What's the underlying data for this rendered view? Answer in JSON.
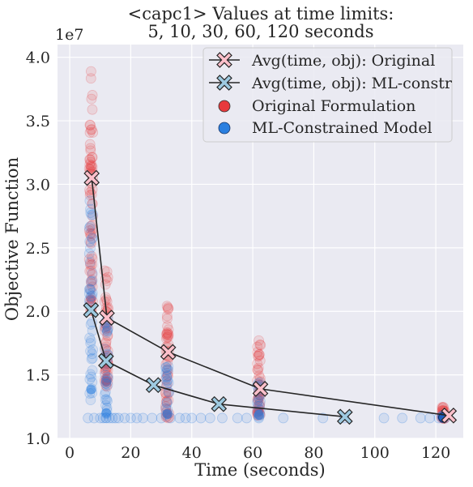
{
  "chart_data": {
    "type": "scatter",
    "title_line1": "<capc1> Values at time limits:",
    "title_line2": "5, 10, 30, 60, 120 seconds",
    "xlabel": "Time (seconds)",
    "ylabel": "Objective Function",
    "y_scale_label": "1e7",
    "xlim": [
      -4,
      129
    ],
    "ylim": [
      1.0,
      4.1
    ],
    "x_ticks": [
      0,
      20,
      40,
      60,
      80,
      100,
      120
    ],
    "y_ticks": [
      1.0,
      1.5,
      2.0,
      2.5,
      3.0,
      3.5,
      4.0
    ],
    "y_tick_labels": [
      "1.0",
      "1.5",
      "2.0",
      "2.5",
      "3.0",
      "3.5",
      "4.0"
    ],
    "grid": true,
    "legend_position": "top-right",
    "colors": {
      "background": "#eaeaf2",
      "original_points": "#e8393c",
      "ml_points": "#2a7fe0",
      "avg_original_marker": "#ffc0cb",
      "avg_ml_marker": "#9ecae1",
      "line": "#262626"
    },
    "series": [
      {
        "name": "Avg(time, obj): Original",
        "kind": "line-marker",
        "x": [
          7.2,
          12.2,
          32.3,
          62.5,
          124.3
        ],
        "y": [
          3.05,
          1.95,
          1.68,
          1.39,
          1.18
        ]
      },
      {
        "name": "Avg(time, obj): ML-constr",
        "kind": "line-marker",
        "x": [
          7.0,
          11.9,
          27.5,
          48.9,
          90.2
        ],
        "y": [
          2.01,
          1.61,
          1.42,
          1.27,
          1.17
        ]
      },
      {
        "name": "Original Formulation",
        "kind": "scatter",
        "clusters": [
          {
            "x": 7.0,
            "y_min": 2.0,
            "y_max": 3.9,
            "n": 70
          },
          {
            "x": 12.0,
            "y_min": 1.4,
            "y_max": 2.35,
            "n": 55
          },
          {
            "x": 32.0,
            "y_min": 1.15,
            "y_max": 2.05,
            "n": 50
          },
          {
            "x": 62.0,
            "y_min": 1.18,
            "y_max": 1.8,
            "n": 45
          },
          {
            "x": 122.5,
            "y_min": 1.15,
            "y_max": 1.25,
            "n": 20
          }
        ]
      },
      {
        "name": "ML-Constrained Model",
        "kind": "scatter",
        "clusters": [
          {
            "x": 7.0,
            "y_min": 1.3,
            "y_max": 3.0,
            "n": 45
          },
          {
            "x": 12.0,
            "y_min": 1.16,
            "y_max": 1.95,
            "n": 35
          },
          {
            "x": 32.0,
            "y_min": 1.17,
            "y_max": 1.6,
            "n": 20
          },
          {
            "x": 62.0,
            "y_min": 1.17,
            "y_max": 1.45,
            "n": 18
          },
          {
            "x": 122.5,
            "y_min": 1.16,
            "y_max": 1.2,
            "n": 8
          }
        ],
        "floor_points": {
          "y": 1.16,
          "x": [
            6,
            8,
            10,
            11,
            12,
            13,
            14,
            15,
            16,
            18,
            20,
            22,
            24,
            27,
            30,
            33,
            36,
            38,
            40,
            43,
            46,
            50,
            55,
            58,
            62,
            70,
            83,
            90,
            103,
            109,
            115,
            118,
            121,
            123
          ]
        }
      }
    ]
  }
}
